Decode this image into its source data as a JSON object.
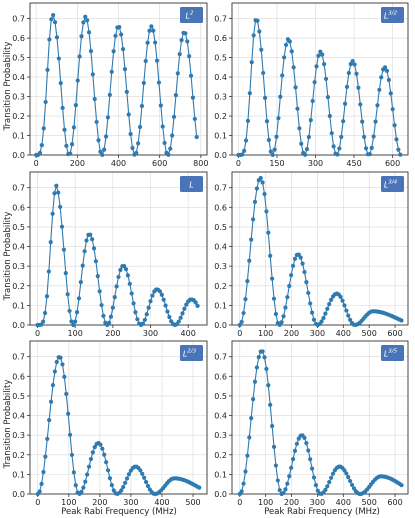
{
  "figure": {
    "ylabel": "Transition Probability",
    "xlabel": "Peak Rabi Frequency (MHz)"
  },
  "colors": {
    "series": "#2f7ab0",
    "legend_bg": "#4a74b8",
    "grid": "#d9d9d9",
    "axis": "#333333"
  },
  "chart_data": [
    {
      "type": "line",
      "legend": [
        "L",
        "2"
      ],
      "legend_placement": "top-right",
      "grid": true,
      "xlim": [
        -30,
        830
      ],
      "ylim": [
        0,
        0.78
      ],
      "xticks": [
        0,
        200,
        400,
        600,
        800
      ],
      "yticks": [
        0.0,
        0.1,
        0.2,
        0.3,
        0.4,
        0.5,
        0.6,
        0.7
      ],
      "peaks_x": [
        80,
        240,
        400,
        560,
        720
      ],
      "peaks_y": [
        0.72,
        0.71,
        0.66,
        0.66,
        0.63
      ],
      "x_range": [
        0,
        780
      ],
      "mode": "sine"
    },
    {
      "type": "line",
      "legend": [
        "L",
        "3/2"
      ],
      "legend_placement": "top-right",
      "grid": true,
      "xlim": [
        -25,
        660
      ],
      "ylim": [
        0,
        0.78
      ],
      "xticks": [
        0,
        150,
        300,
        450,
        600
      ],
      "yticks": [
        0.0,
        0.1,
        0.2,
        0.3,
        0.4,
        0.5,
        0.6,
        0.7
      ],
      "peaks_x": [
        70,
        185,
        320,
        450,
        570
      ],
      "peaks_y": [
        0.7,
        0.6,
        0.53,
        0.48,
        0.45
      ],
      "x_range": [
        0,
        630
      ],
      "mode": "sine"
    },
    {
      "type": "line",
      "legend": [
        "L",
        ""
      ],
      "legend_placement": "top-right",
      "grid": true,
      "xlim": [
        -20,
        450
      ],
      "ylim": [
        0,
        0.78
      ],
      "xticks": [
        0,
        100,
        200,
        300,
        400
      ],
      "yticks": [
        0.0,
        0.1,
        0.2,
        0.3,
        0.4,
        0.5,
        0.6,
        0.7
      ],
      "peaks_x": [
        50,
        140,
        230,
        320,
        410
      ],
      "peaks_y": [
        0.71,
        0.46,
        0.3,
        0.18,
        0.13
      ],
      "x_range": [
        0,
        425
      ],
      "mode": "sine"
    },
    {
      "type": "line",
      "legend": [
        "L",
        "3/4"
      ],
      "legend_placement": "top-right",
      "grid": true,
      "xlim": [
        -30,
        650
      ],
      "ylim": [
        0,
        0.78
      ],
      "xticks": [
        0,
        100,
        200,
        300,
        400,
        500,
        600
      ],
      "yticks": [
        0.0,
        0.1,
        0.2,
        0.3,
        0.4,
        0.5,
        0.6,
        0.7
      ],
      "peaks_x": [
        80,
        225,
        375,
        515
      ],
      "peaks_y": [
        0.75,
        0.36,
        0.16,
        0.07
      ],
      "x_range": [
        0,
        625
      ],
      "mode": "bump"
    },
    {
      "type": "line",
      "legend": [
        "L",
        "2/3"
      ],
      "legend_placement": "top-right",
      "grid": true,
      "xlim": [
        -25,
        545
      ],
      "ylim": [
        0,
        0.78
      ],
      "xticks": [
        0,
        100,
        200,
        300,
        400,
        500
      ],
      "yticks": [
        0.0,
        0.1,
        0.2,
        0.3,
        0.4,
        0.5,
        0.6,
        0.7
      ],
      "peaks_x": [
        70,
        195,
        315,
        440
      ],
      "peaks_y": [
        0.7,
        0.26,
        0.14,
        0.08
      ],
      "x_range": [
        0,
        520
      ],
      "mode": "bump"
    },
    {
      "type": "line",
      "legend": [
        "L",
        "3/5"
      ],
      "legend_placement": "top-right",
      "grid": true,
      "xlim": [
        -30,
        650
      ],
      "ylim": [
        0,
        0.78
      ],
      "xticks": [
        0,
        100,
        200,
        300,
        400,
        500,
        600
      ],
      "yticks": [
        0.0,
        0.1,
        0.2,
        0.3,
        0.4,
        0.5,
        0.6,
        0.7
      ],
      "peaks_x": [
        85,
        240,
        385,
        545
      ],
      "peaks_y": [
        0.73,
        0.3,
        0.14,
        0.09
      ],
      "x_range": [
        0,
        625
      ],
      "mode": "bump"
    }
  ]
}
